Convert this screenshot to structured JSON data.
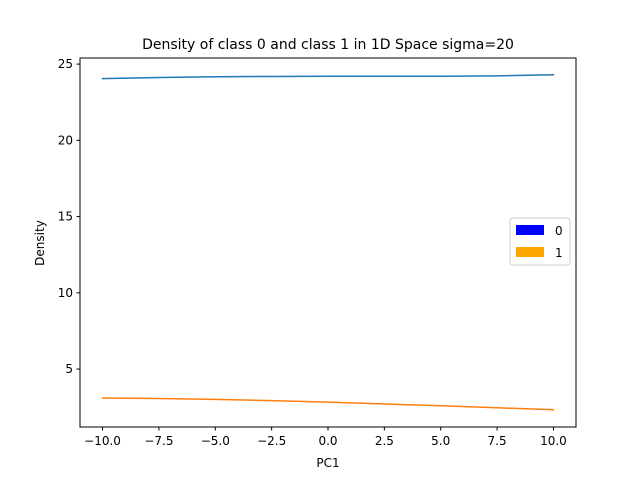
{
  "chart_data": {
    "type": "line",
    "title": "Density of class 0 and class 1 in 1D Space sigma=20",
    "xlabel": "PC1",
    "ylabel": "Density",
    "xlim": [
      -11,
      11
    ],
    "ylim": [
      1.2,
      25.4
    ],
    "xticks": [
      -10,
      -7.5,
      -5,
      -2.5,
      0,
      2.5,
      5,
      7.5,
      10
    ],
    "xtick_labels": [
      "−10.0",
      "−7.5",
      "−5.0",
      "−2.5",
      "0.0",
      "2.5",
      "5.0",
      "7.5",
      "10.0"
    ],
    "yticks": [
      5,
      10,
      15,
      20,
      25
    ],
    "ytick_labels": [
      "5",
      "10",
      "15",
      "20",
      "25"
    ],
    "grid": false,
    "legend_position": "center-right",
    "series": [
      {
        "name": "0",
        "color": "#1f77b4",
        "legend_color": "#0000ff",
        "x": [
          -10,
          -7.5,
          -5,
          -2.5,
          0,
          2.5,
          5,
          7.5,
          10
        ],
        "values": [
          24.05,
          24.12,
          24.17,
          24.19,
          24.2,
          24.2,
          24.2,
          24.23,
          24.3
        ]
      },
      {
        "name": "1",
        "color": "#ff7f0e",
        "legend_color": "#ffa500",
        "x": [
          -10,
          -7.5,
          -5,
          -2.5,
          0,
          2.5,
          5,
          7.5,
          10
        ],
        "values": [
          3.1,
          3.07,
          3.01,
          2.93,
          2.83,
          2.71,
          2.59,
          2.46,
          2.33
        ]
      }
    ]
  }
}
